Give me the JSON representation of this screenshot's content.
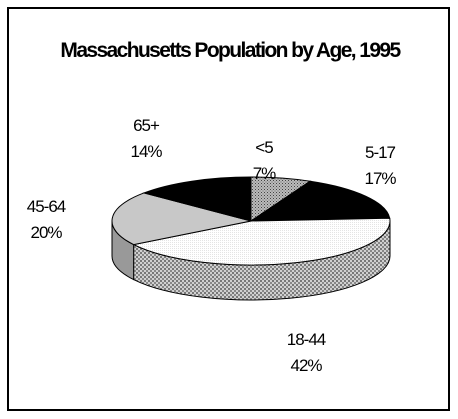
{
  "chart_data": {
    "type": "pie",
    "title": "Massachusetts Population by Age, 1995",
    "categories": [
      "<5",
      "5-17",
      "18-44",
      "45-64",
      "65+"
    ],
    "values": [
      7,
      17,
      42,
      20,
      14
    ],
    "value_labels": [
      "7%",
      "17%",
      "42%",
      "20%",
      "14%"
    ],
    "colors": [
      "#8c8c8c",
      "#000000",
      "#ffffff",
      "#c8c8c8",
      "#000000"
    ]
  }
}
